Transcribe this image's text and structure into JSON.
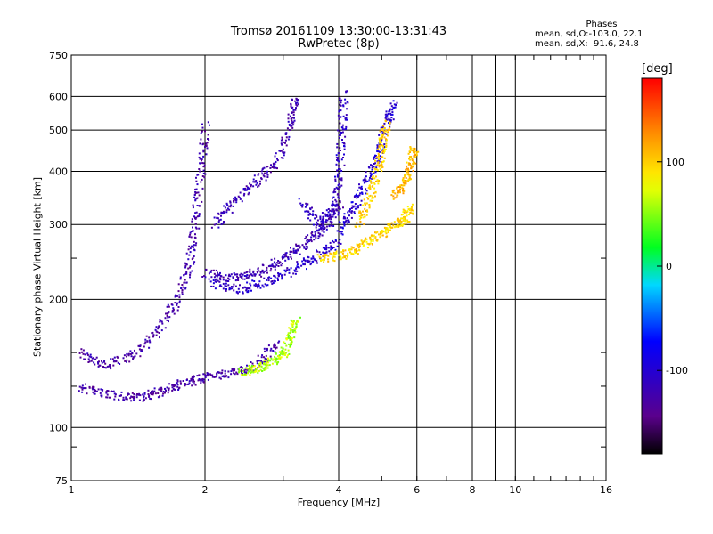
{
  "header": {
    "title_line1": "Tromsø 20161109 13:30:00-13:31:43",
    "title_line2": "RwPretec (8p)"
  },
  "stats": {
    "title": "Phases",
    "line1": "mean, sd,O:-103.0, 22.1",
    "line2": "mean, sd,X:  91.6, 24.8"
  },
  "colorbar": {
    "label": "[deg]",
    "ticks": [
      {
        "value": 100,
        "label": "100"
      },
      {
        "value": 0,
        "label": "0"
      },
      {
        "value": -100,
        "label": "-100"
      }
    ],
    "range": [
      -180,
      180
    ]
  },
  "chart_data": {
    "type": "scatter",
    "title": "Tromsø 20161109 13:30:00-13:31:43",
    "subtitle": "RwPretec (8p)",
    "xlabel": "Frequency [MHz]",
    "ylabel": "Stationary phase Virtual Height [km]",
    "xscale": "log",
    "yscale": "log",
    "xlim": [
      1,
      16
    ],
    "ylim": [
      75,
      750
    ],
    "xticks": [
      {
        "v": 1,
        "label": "1"
      },
      {
        "v": 2,
        "label": "2"
      },
      {
        "v": 4,
        "label": "4"
      },
      {
        "v": 6,
        "label": "6"
      },
      {
        "v": 8,
        "label": "8"
      },
      {
        "v": 10,
        "label": "10"
      },
      {
        "v": 16,
        "label": "16"
      }
    ],
    "x_minor": [
      9
    ],
    "yticks": [
      {
        "v": 75,
        "label": "75"
      },
      {
        "v": 100,
        "label": "100"
      },
      {
        "v": 200,
        "label": "200"
      },
      {
        "v": 300,
        "label": "300"
      },
      {
        "v": 400,
        "label": "400"
      },
      {
        "v": 500,
        "label": "500"
      },
      {
        "v": 600,
        "label": "600"
      },
      {
        "v": 750,
        "label": "750"
      }
    ],
    "y_minor": [
      90,
      125,
      150,
      250
    ],
    "grid": true,
    "color_scale": "phase [deg], rainbow from -180 (black/purple) to 180 (red)",
    "traces": [
      {
        "name": "",
        "phase": -125,
        "points": [
          [
            1.05,
            125
          ],
          [
            1.2,
            120
          ],
          [
            1.4,
            118
          ],
          [
            1.6,
            122
          ],
          [
            1.8,
            128
          ],
          [
            2.0,
            132
          ],
          [
            2.3,
            135
          ],
          [
            2.6,
            140
          ],
          [
            2.9,
            160
          ]
        ]
      },
      {
        "name": "",
        "phase": -125,
        "points": [
          [
            1.05,
            150
          ],
          [
            1.2,
            140
          ],
          [
            1.4,
            150
          ],
          [
            1.6,
            175
          ],
          [
            1.75,
            205
          ],
          [
            1.85,
            250
          ],
          [
            1.9,
            310
          ],
          [
            1.95,
            400
          ],
          [
            2.0,
            520
          ]
        ]
      },
      {
        "name": "",
        "phase": -120,
        "points": [
          [
            2.0,
            232
          ],
          [
            2.3,
            226
          ],
          [
            2.6,
            232
          ],
          [
            2.9,
            245
          ],
          [
            3.2,
            262
          ],
          [
            3.5,
            282
          ],
          [
            3.8,
            305
          ],
          [
            4.0,
            340
          ]
        ]
      },
      {
        "name": "",
        "phase": -105,
        "points": [
          [
            2.05,
            220
          ],
          [
            2.4,
            212
          ],
          [
            2.8,
            222
          ],
          [
            3.2,
            238
          ],
          [
            3.6,
            255
          ],
          [
            4.0,
            275
          ]
        ]
      },
      {
        "name": "",
        "phase": -120,
        "points": [
          [
            2.1,
            300
          ],
          [
            2.3,
            340
          ],
          [
            2.6,
            380
          ],
          [
            2.9,
            420
          ],
          [
            3.1,
            520
          ],
          [
            3.2,
            600
          ]
        ]
      },
      {
        "name": "",
        "phase": -110,
        "points": [
          [
            3.3,
            340
          ],
          [
            3.6,
            300
          ],
          [
            3.9,
            330
          ],
          [
            4.0,
            400
          ],
          [
            4.05,
            500
          ],
          [
            4.1,
            620
          ]
        ]
      },
      {
        "name": "",
        "phase": -100,
        "points": [
          [
            4.0,
            290
          ],
          [
            4.3,
            330
          ],
          [
            4.6,
            380
          ],
          [
            4.9,
            440
          ],
          [
            5.1,
            520
          ],
          [
            5.3,
            580
          ]
        ]
      },
      {
        "name": "",
        "phase": 95,
        "points": [
          [
            3.6,
            250
          ],
          [
            4.0,
            255
          ],
          [
            4.4,
            265
          ],
          [
            4.8,
            280
          ],
          [
            5.2,
            295
          ],
          [
            5.6,
            310
          ],
          [
            5.8,
            330
          ]
        ]
      },
      {
        "name": "",
        "phase": 100,
        "points": [
          [
            4.4,
            300
          ],
          [
            4.7,
            350
          ],
          [
            4.9,
            410
          ],
          [
            5.0,
            470
          ],
          [
            5.1,
            520
          ]
        ]
      },
      {
        "name": "",
        "phase": 110,
        "points": [
          [
            5.3,
            350
          ],
          [
            5.6,
            380
          ],
          [
            5.8,
            420
          ],
          [
            5.9,
            460
          ]
        ]
      },
      {
        "name": "",
        "phase": 60,
        "points": [
          [
            2.4,
            135
          ],
          [
            2.6,
            138
          ],
          [
            2.8,
            143
          ],
          [
            3.0,
            150
          ],
          [
            3.1,
            165
          ],
          [
            3.2,
            180
          ]
        ]
      }
    ]
  }
}
